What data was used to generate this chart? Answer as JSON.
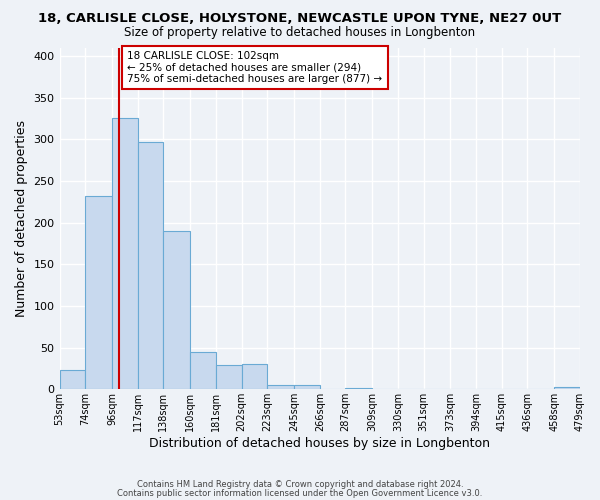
{
  "title1": "18, CARLISLE CLOSE, HOLYSTONE, NEWCASTLE UPON TYNE, NE27 0UT",
  "title2": "Size of property relative to detached houses in Longbenton",
  "xlabel": "Distribution of detached houses by size in Longbenton",
  "ylabel": "Number of detached properties",
  "bin_edges": [
    53,
    74,
    96,
    117,
    138,
    160,
    181,
    202,
    223,
    245,
    266,
    287,
    309,
    330,
    351,
    373,
    394,
    415,
    436,
    458,
    479
  ],
  "bar_heights": [
    23,
    232,
    325,
    297,
    190,
    45,
    29,
    30,
    5,
    5,
    0,
    1,
    0,
    0,
    0,
    0,
    0,
    0,
    0,
    3
  ],
  "bar_facecolor": "#c8d9ee",
  "bar_edgecolor": "#6aaad4",
  "vline_x": 102,
  "vline_color": "#cc0000",
  "ylim": [
    0,
    410
  ],
  "xlim_left": 53,
  "annotation_title": "18 CARLISLE CLOSE: 102sqm",
  "annotation_line1": "← 25% of detached houses are smaller (294)",
  "annotation_line2": "75% of semi-detached houses are larger (877) →",
  "annotation_box_color": "#cc0000",
  "footer1": "Contains HM Land Registry data © Crown copyright and database right 2024.",
  "footer2": "Contains public sector information licensed under the Open Government Licence v3.0.",
  "bg_color": "#eef2f7",
  "grid_color": "#ffffff",
  "tick_labels": [
    "53sqm",
    "74sqm",
    "96sqm",
    "117sqm",
    "138sqm",
    "160sqm",
    "181sqm",
    "202sqm",
    "223sqm",
    "245sqm",
    "266sqm",
    "287sqm",
    "309sqm",
    "330sqm",
    "351sqm",
    "373sqm",
    "394sqm",
    "415sqm",
    "436sqm",
    "458sqm",
    "479sqm"
  ]
}
